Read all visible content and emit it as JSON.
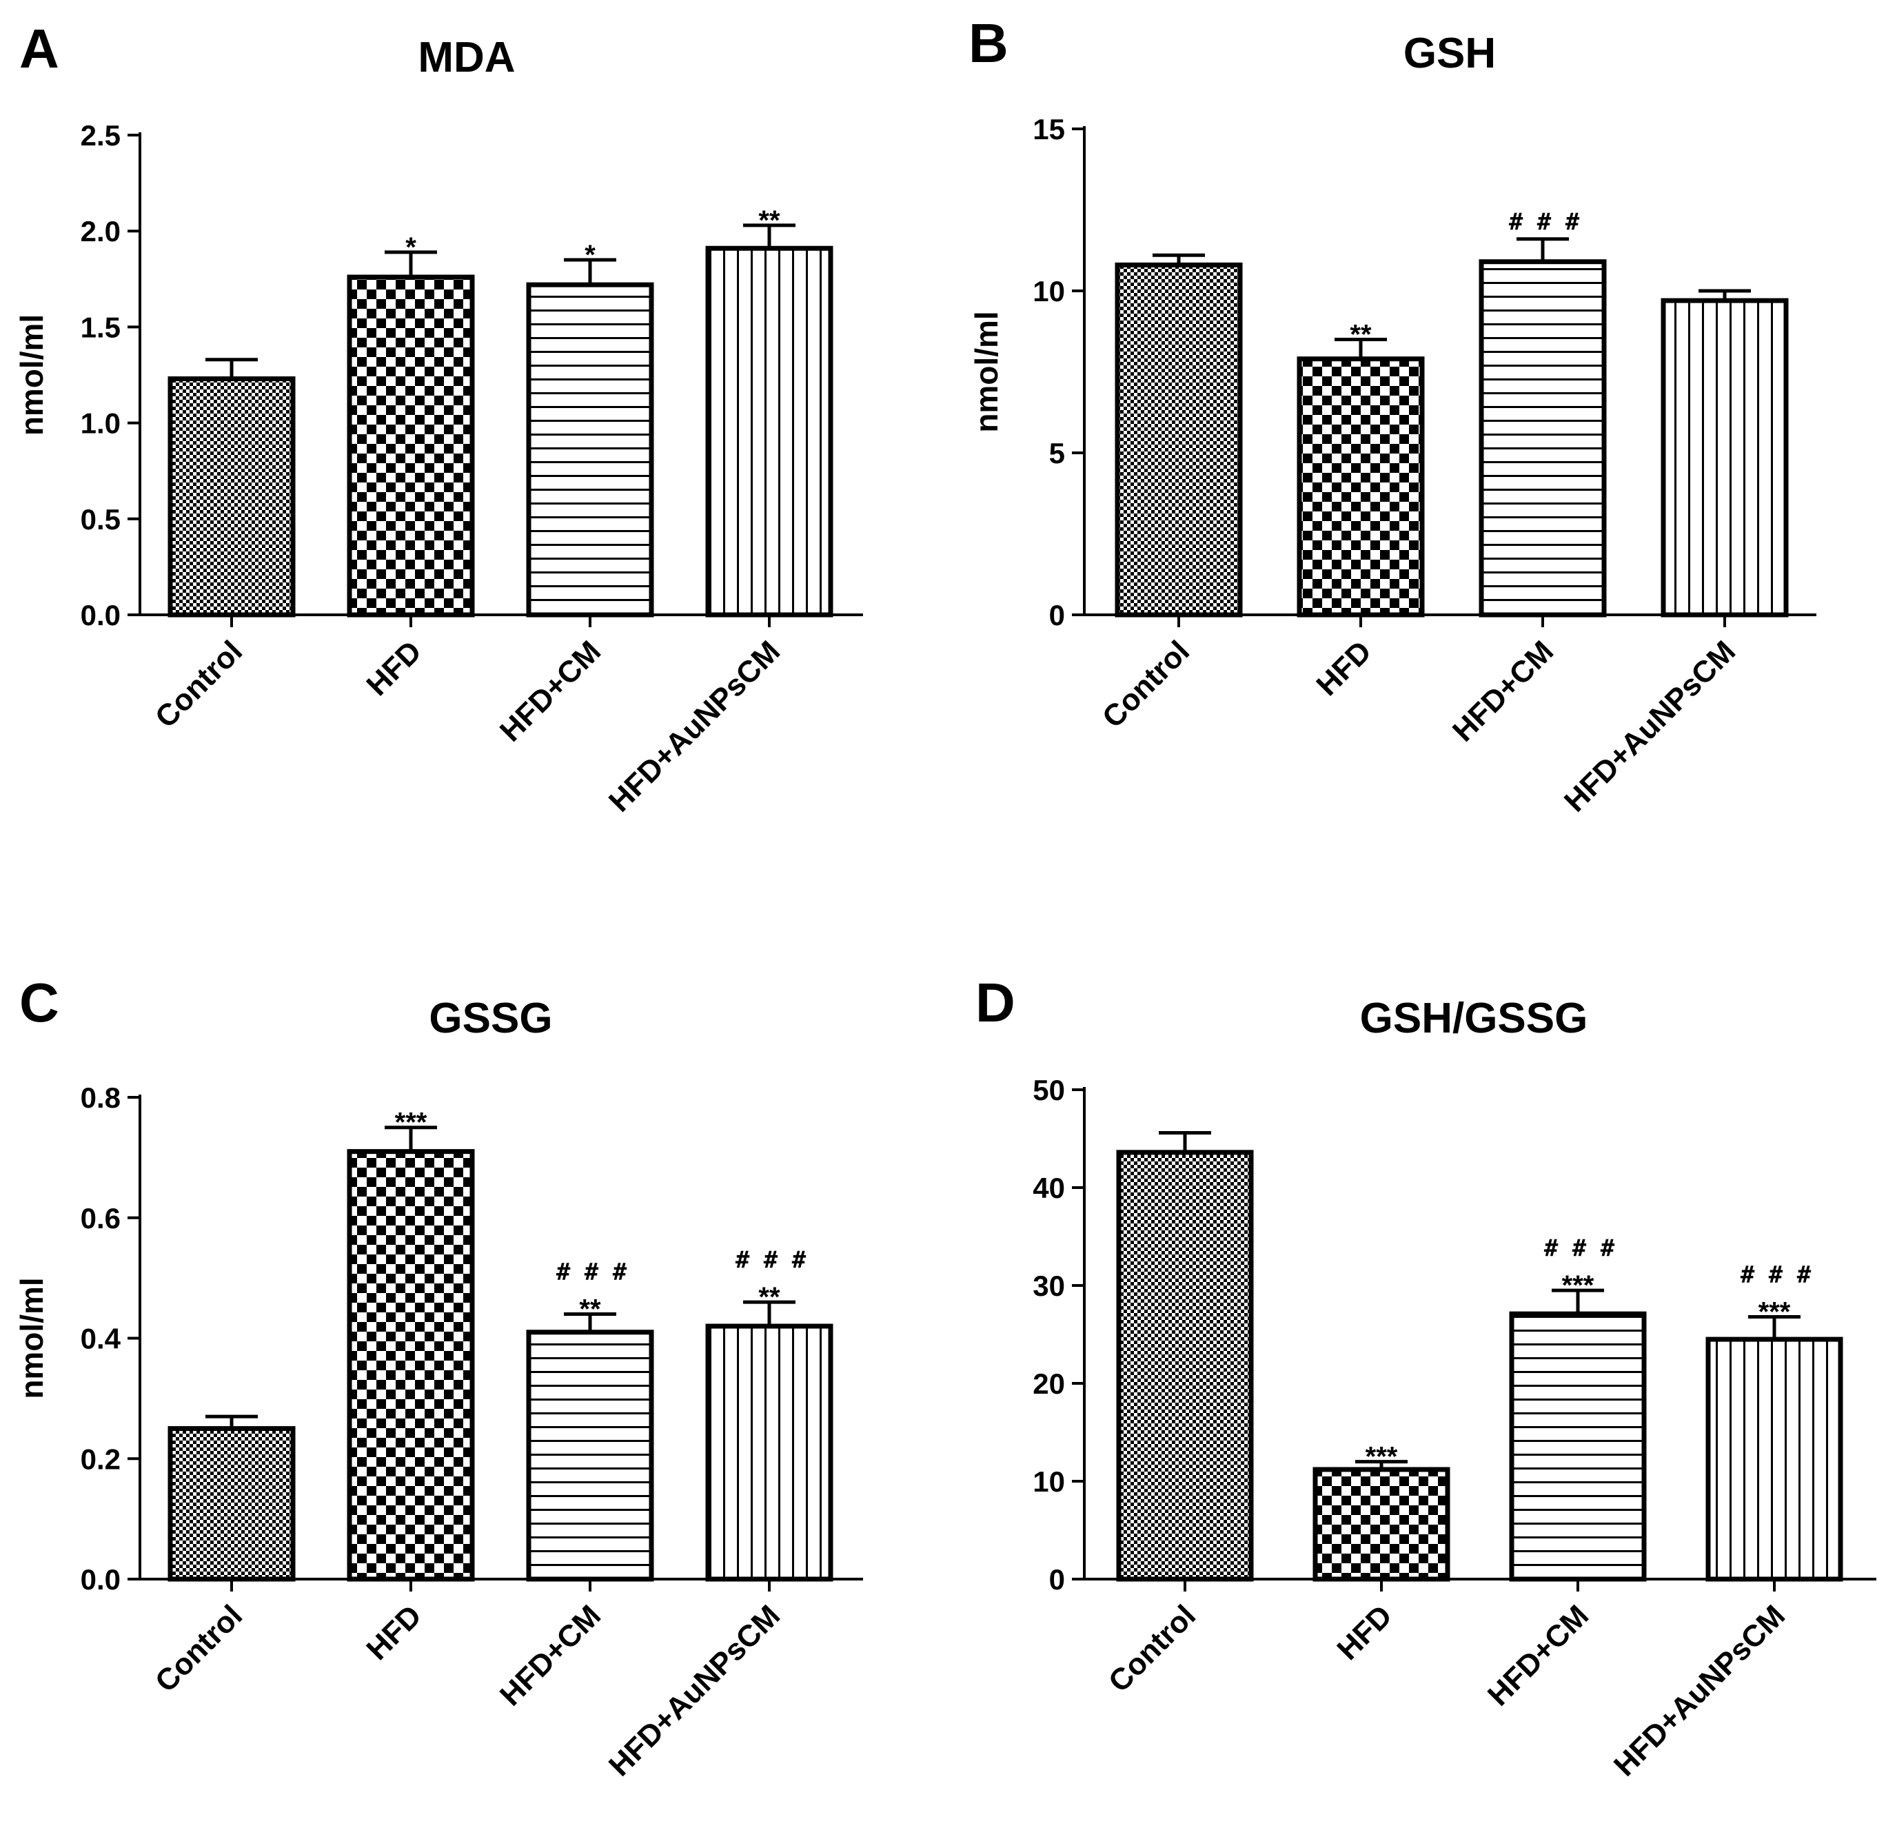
{
  "chart_data": [
    {
      "panel": "A",
      "type": "bar",
      "title": "MDA",
      "ylabel": "nmol/ml",
      "xlabel": "",
      "ylim": [
        0,
        2.5
      ],
      "yticks": [
        "0.0",
        "0.5",
        "1.0",
        "1.5",
        "2.0",
        "2.5"
      ],
      "categories": [
        "Control",
        "HFD",
        "HFD+CM",
        "HFD+AuNPsCM"
      ],
      "values": [
        1.23,
        1.76,
        1.72,
        1.91
      ],
      "errors": [
        0.1,
        0.13,
        0.13,
        0.12
      ],
      "significance": [
        [],
        [
          "*"
        ],
        [
          "*"
        ],
        [
          "**"
        ]
      ],
      "patterns": [
        "fine-check",
        "checker",
        "hlines",
        "vlines"
      ]
    },
    {
      "panel": "B",
      "type": "bar",
      "title": "GSH",
      "ylabel": "nmol/ml",
      "xlabel": "",
      "ylim": [
        0,
        15
      ],
      "yticks": [
        "0",
        "5",
        "10",
        "15"
      ],
      "categories": [
        "Control",
        "HFD",
        "HFD+CM",
        "HFD+AuNPsCM"
      ],
      "values": [
        10.8,
        7.9,
        10.9,
        9.7
      ],
      "errors": [
        0.3,
        0.6,
        0.7,
        0.3
      ],
      "significance": [
        [],
        [
          "**"
        ],
        [
          "###"
        ],
        []
      ],
      "patterns": [
        "fine-check",
        "checker",
        "hlines",
        "vlines"
      ]
    },
    {
      "panel": "C",
      "type": "bar",
      "title": "GSSG",
      "ylabel": "nmol/ml",
      "xlabel": "",
      "ylim": [
        0,
        0.8
      ],
      "yticks": [
        "0.0",
        "0.2",
        "0.4",
        "0.6",
        "0.8"
      ],
      "categories": [
        "Control",
        "HFD",
        "HFD+CM",
        "HFD+AuNPsCM"
      ],
      "values": [
        0.25,
        0.71,
        0.41,
        0.42
      ],
      "errors": [
        0.02,
        0.04,
        0.03,
        0.04
      ],
      "significance": [
        [],
        [
          "***"
        ],
        [
          "###",
          "**"
        ],
        [
          "###",
          "**"
        ]
      ],
      "patterns": [
        "fine-check",
        "checker",
        "hlines",
        "vlines"
      ]
    },
    {
      "panel": "D",
      "type": "bar",
      "title": "GSH/GSSG",
      "ylabel": "",
      "xlabel": "",
      "ylim": [
        0,
        50
      ],
      "yticks": [
        "0",
        "10",
        "20",
        "30",
        "40",
        "50"
      ],
      "categories": [
        "Control",
        "HFD",
        "HFD+CM",
        "HFD+AuNPsCM"
      ],
      "values": [
        43.6,
        11.2,
        27.1,
        24.5
      ],
      "errors": [
        2.0,
        0.8,
        2.4,
        2.3
      ],
      "significance": [
        [],
        [
          "***"
        ],
        [
          "###",
          "***"
        ],
        [
          "###",
          "***"
        ]
      ],
      "patterns": [
        "fine-check",
        "checker",
        "hlines",
        "vlines"
      ]
    }
  ]
}
